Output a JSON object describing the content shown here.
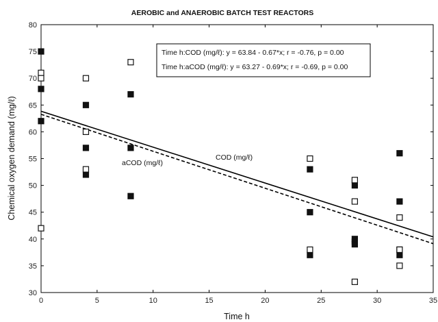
{
  "chart_data": {
    "type": "scatter",
    "title": "AEROBIC and ANAEROBIC BATCH TEST REACTORS",
    "xlabel": "Time h",
    "ylabel": "Chemical oxygen demand (mg/ℓ)",
    "xlim": [
      0,
      35
    ],
    "ylim": [
      30,
      80
    ],
    "xticks": [
      0,
      5,
      10,
      15,
      20,
      25,
      30,
      35
    ],
    "yticks": [
      30,
      35,
      40,
      45,
      50,
      55,
      60,
      65,
      70,
      75,
      80
    ],
    "grid": false,
    "series": [
      {
        "name": "COD (mg/ℓ)",
        "marker": "filled-square",
        "color": "#111111",
        "x": [
          0,
          0,
          0,
          4,
          4,
          4,
          8,
          8,
          8,
          24,
          24,
          24,
          28,
          28,
          28,
          28,
          32,
          32,
          32,
          32
        ],
        "y": [
          75,
          68,
          62,
          65,
          57,
          52,
          67,
          57,
          48,
          53,
          45,
          37,
          50,
          40,
          39.5,
          39,
          56,
          47,
          38,
          37
        ],
        "fit": {
          "slope": -0.67,
          "intercept": 63.84,
          "style": "solid"
        }
      },
      {
        "name": "aCOD (mg/ℓ)",
        "marker": "open-square",
        "color": "#111111",
        "x": [
          0,
          0,
          0,
          4,
          4,
          4,
          8,
          24,
          24,
          28,
          28,
          28,
          32,
          32,
          32
        ],
        "y": [
          71,
          70,
          42,
          70,
          60,
          53,
          73,
          55,
          38,
          51,
          47,
          32,
          44,
          38,
          35
        ],
        "fit": {
          "slope": -0.69,
          "intercept": 63.27,
          "style": "dashed"
        }
      }
    ],
    "legend_box": [
      "Time h:COD (mg/ℓ):   y = 63.84 - 0.67*x;  r = -0.76, p = 0.00",
      "Time h:aCOD (mg/ℓ):   y = 63.27 - 0.69*x;  r = -0.69, p = 0.00"
    ],
    "line_labels": {
      "cod": "COD (mg/ℓ)",
      "acod": "aCOD (mg/ℓ)"
    }
  }
}
